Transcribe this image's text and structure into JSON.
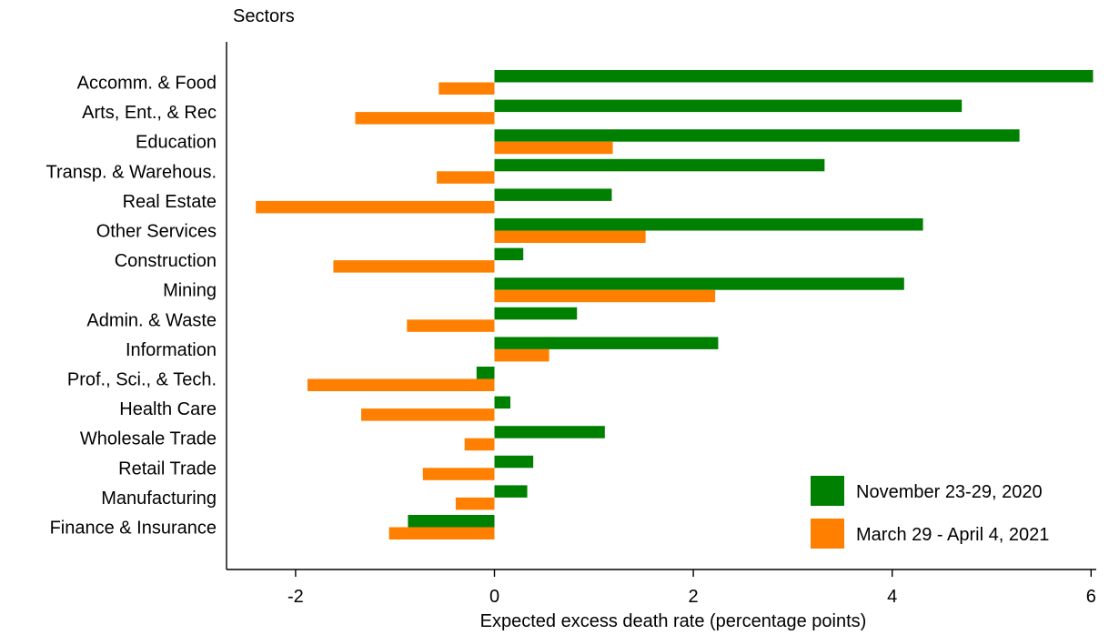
{
  "chart_data": {
    "type": "bar",
    "orientation": "horizontal",
    "title": "",
    "ylabel": "Sectors",
    "xlabel": "Expected excess death rate (percentage points)",
    "xlim": [
      -2.7,
      6.1
    ],
    "xticks": [
      -2,
      0,
      2,
      4,
      6
    ],
    "grid": false,
    "legend_position": "bottom-right",
    "categories": [
      "Accomm. & Food",
      "Arts, Ent., & Rec",
      "Education",
      "Transp. & Warehous.",
      "Real Estate",
      "Other Services",
      "Construction",
      "Mining",
      "Admin. & Waste",
      "Information",
      "Prof., Sci., & Tech.",
      "Health Care",
      "Wholesale Trade",
      "Retail Trade",
      "Manufacturing",
      "Finance & Insurance"
    ],
    "series": [
      {
        "name": "November 23-29, 2020",
        "color": "#008000",
        "values": [
          6.02,
          4.7,
          5.28,
          3.32,
          1.18,
          4.31,
          0.29,
          4.12,
          0.83,
          2.25,
          -0.18,
          0.16,
          1.11,
          0.39,
          0.33,
          -0.87
        ]
      },
      {
        "name": "March 29 - April 4, 2021",
        "color": "#FF8000",
        "values": [
          -0.56,
          -1.4,
          1.19,
          -0.58,
          -2.4,
          1.52,
          -1.62,
          2.22,
          -0.88,
          0.55,
          -1.88,
          -1.34,
          -0.3,
          -0.72,
          -0.39,
          -1.06
        ]
      }
    ]
  }
}
